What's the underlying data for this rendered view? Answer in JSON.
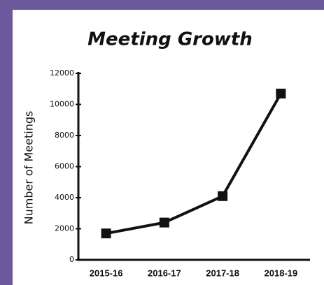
{
  "chart_data": {
    "type": "line",
    "title": "Meeting Growth",
    "y_label": "Number of Meetings",
    "categories": [
      "2015-16",
      "2016-17",
      "2017-18",
      "2018-19"
    ],
    "values": [
      1700,
      2400,
      4100,
      10700
    ],
    "color": "#111111",
    "ylim": [
      0,
      12000
    ],
    "yticks": [
      0,
      2000,
      4000,
      6000,
      8000,
      10000,
      12000
    ]
  }
}
